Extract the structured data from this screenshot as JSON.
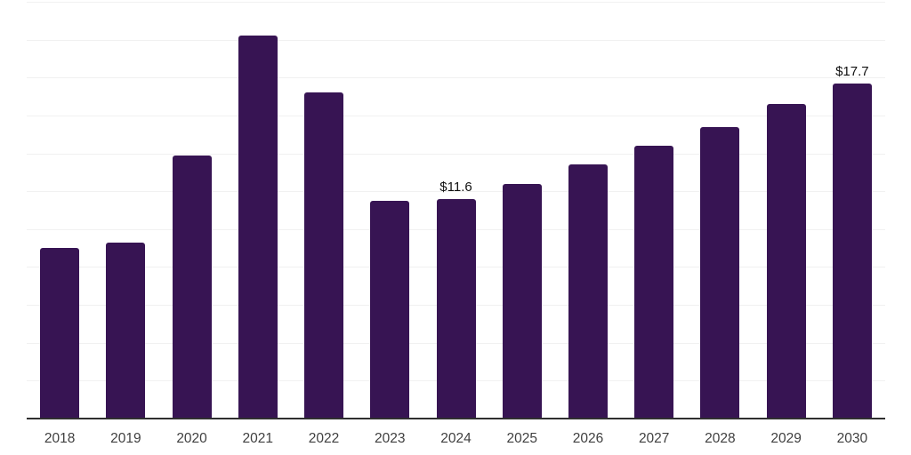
{
  "chart_data": {
    "type": "bar",
    "title": "",
    "xlabel": "",
    "ylabel": "",
    "categories": [
      "2018",
      "2019",
      "2020",
      "2021",
      "2022",
      "2023",
      "2024",
      "2025",
      "2026",
      "2027",
      "2028",
      "2029",
      "2030"
    ],
    "values": [
      9.0,
      9.3,
      13.9,
      20.2,
      17.2,
      11.5,
      11.6,
      12.4,
      13.4,
      14.4,
      15.4,
      16.6,
      17.7
    ],
    "data_labels": {
      "2024": "$11.6",
      "2030": "$17.7"
    },
    "ylim": [
      0,
      22
    ],
    "gridline_step": 2,
    "grid": "horizontal-only",
    "legend": "none",
    "y_axis_tick_labels": "none",
    "colors": {
      "bar": "#371453",
      "axis_line": "#2f2f2f",
      "gridline": "#f1f1f1",
      "tick_label": "#404040",
      "value_label": "#111111",
      "background": "#ffffff"
    }
  }
}
